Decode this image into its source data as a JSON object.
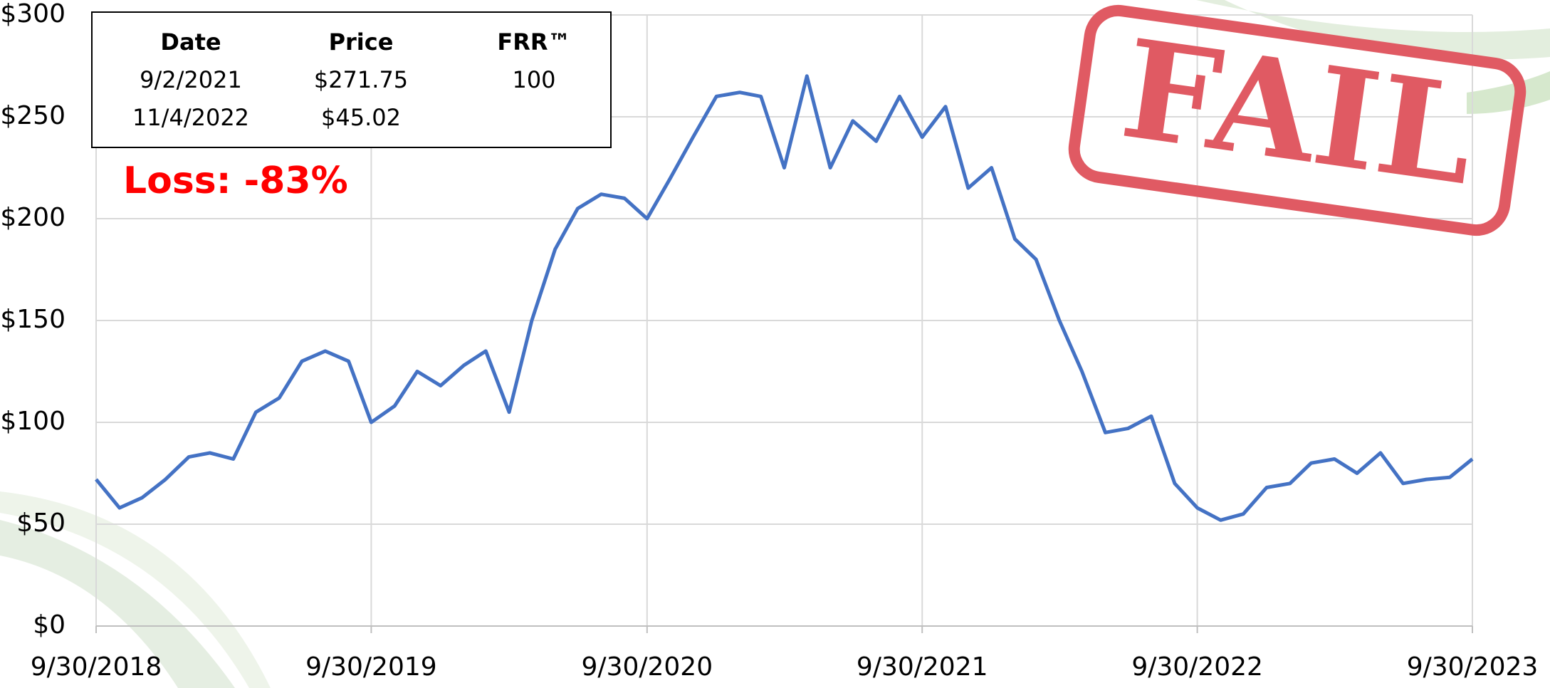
{
  "chart_data": {
    "type": "line",
    "color": "#4472c4",
    "grid": true,
    "x": [
      "2018-09-30",
      "2018-10-31",
      "2018-11-30",
      "2018-12-31",
      "2019-01-31",
      "2019-02-28",
      "2019-03-31",
      "2019-04-30",
      "2019-05-31",
      "2019-06-30",
      "2019-07-31",
      "2019-08-31",
      "2019-09-30",
      "2019-10-31",
      "2019-11-30",
      "2019-12-31",
      "2020-01-31",
      "2020-02-29",
      "2020-03-31",
      "2020-04-30",
      "2020-05-31",
      "2020-06-30",
      "2020-07-31",
      "2020-08-31",
      "2020-09-30",
      "2020-10-31",
      "2020-11-30",
      "2020-12-31",
      "2021-01-31",
      "2021-02-28",
      "2021-03-31",
      "2021-04-30",
      "2021-05-31",
      "2021-06-30",
      "2021-07-31",
      "2021-08-31",
      "2021-09-30",
      "2021-10-31",
      "2021-11-30",
      "2021-12-31",
      "2022-01-31",
      "2022-02-28",
      "2022-03-31",
      "2022-04-30",
      "2022-05-31",
      "2022-06-30",
      "2022-07-31",
      "2022-08-31",
      "2022-09-30",
      "2022-10-31",
      "2022-11-30",
      "2022-12-31",
      "2023-01-31",
      "2023-02-28",
      "2023-03-31",
      "2023-04-30",
      "2023-05-31",
      "2023-06-30",
      "2023-07-31",
      "2023-08-31",
      "2023-09-30"
    ],
    "values": [
      72,
      58,
      63,
      72,
      83,
      85,
      82,
      105,
      112,
      130,
      135,
      130,
      100,
      108,
      125,
      118,
      128,
      135,
      105,
      150,
      185,
      205,
      212,
      210,
      200,
      220,
      240,
      260,
      262,
      260,
      225,
      270,
      225,
      248,
      238,
      260,
      240,
      255,
      215,
      225,
      190,
      180,
      150,
      125,
      95,
      97,
      103,
      70,
      58,
      52,
      55,
      68,
      70,
      80,
      82,
      75,
      85,
      70,
      72,
      73,
      82
    ],
    "xlim": [
      "2018-09-30",
      "2023-09-30"
    ],
    "xticks": [
      {
        "value": "2018-09-30",
        "label": "9/30/2018"
      },
      {
        "value": "2019-09-30",
        "label": "9/30/2019"
      },
      {
        "value": "2020-09-30",
        "label": "9/30/2020"
      },
      {
        "value": "2021-09-30",
        "label": "9/30/2021"
      },
      {
        "value": "2022-09-30",
        "label": "9/30/2022"
      },
      {
        "value": "2023-09-30",
        "label": "9/30/2023"
      }
    ],
    "ylim": [
      0,
      300
    ],
    "yticks": [
      {
        "value": 0,
        "label": "$0"
      },
      {
        "value": 50,
        "label": "$50"
      },
      {
        "value": 100,
        "label": "$100"
      },
      {
        "value": 150,
        "label": "$150"
      },
      {
        "value": 200,
        "label": "$200"
      },
      {
        "value": 250,
        "label": "$250"
      },
      {
        "value": 300,
        "label": "$300"
      }
    ]
  },
  "table": {
    "header": [
      "Date",
      "Price",
      "FRR™"
    ],
    "rows": [
      [
        "9/2/2021",
        "$271.75",
        "100"
      ],
      [
        "11/4/2022",
        "$45.02"
      ]
    ]
  },
  "loss_label": "Loss: -83%",
  "stamp": "FAIL"
}
